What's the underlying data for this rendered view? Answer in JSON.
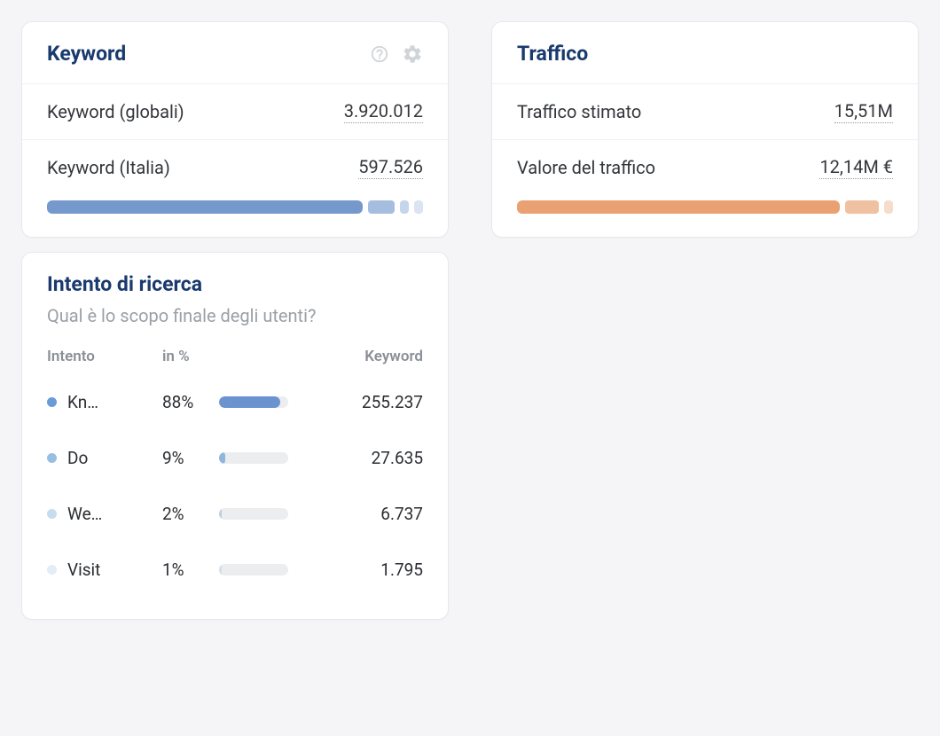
{
  "keyword_card": {
    "title": "Keyword",
    "rows": [
      {
        "label": "Keyword (globali)",
        "value": "3.920.012"
      },
      {
        "label": "Keyword (Italia)",
        "value": "597.526"
      }
    ],
    "bar": {
      "main_color": "#7699cd",
      "main_width_pct": 76,
      "segments": [
        {
          "width": 30,
          "color": "#a5bedf"
        },
        {
          "width": 10,
          "color": "#c6d6ea"
        },
        {
          "width": 10,
          "color": "#dbe4f1"
        }
      ]
    }
  },
  "traffic_card": {
    "title": "Traffico",
    "rows": [
      {
        "label": "Traffico stimato",
        "value": "15,51M"
      },
      {
        "label": "Valore del traffico",
        "value": "12,14M €"
      }
    ],
    "bar": {
      "main_color": "#e9a171",
      "main_width_pct": 85,
      "segments": [
        {
          "width": 38,
          "color": "#f0c1a0"
        },
        {
          "width": 10,
          "color": "#f6dccb"
        }
      ]
    }
  },
  "intent_card": {
    "title": "Intento di ricerca",
    "subtitle": "Qual è lo scopo finale degli utenti?",
    "columns": {
      "intent": "Intento",
      "percent": "in %",
      "keyword": "Keyword"
    },
    "rows": [
      {
        "dot_color": "#6b9bd6",
        "label": "Kn…",
        "percent": "88%",
        "bar_pct": 88,
        "bar_color": "#6b93d0",
        "keyword": "255.237"
      },
      {
        "dot_color": "#97bfe4",
        "label": "Do",
        "percent": "9%",
        "bar_pct": 9,
        "bar_color": "#8fb6db",
        "keyword": "27.635"
      },
      {
        "dot_color": "#c8dcef",
        "label": "We…",
        "percent": "2%",
        "bar_pct": 2,
        "bar_color": "#bcd0e6",
        "keyword": "6.737"
      },
      {
        "dot_color": "#e4ecf5",
        "label": "Visit",
        "percent": "1%",
        "bar_pct": 1,
        "bar_color": "#d3dfed",
        "keyword": "1.795"
      }
    ]
  }
}
